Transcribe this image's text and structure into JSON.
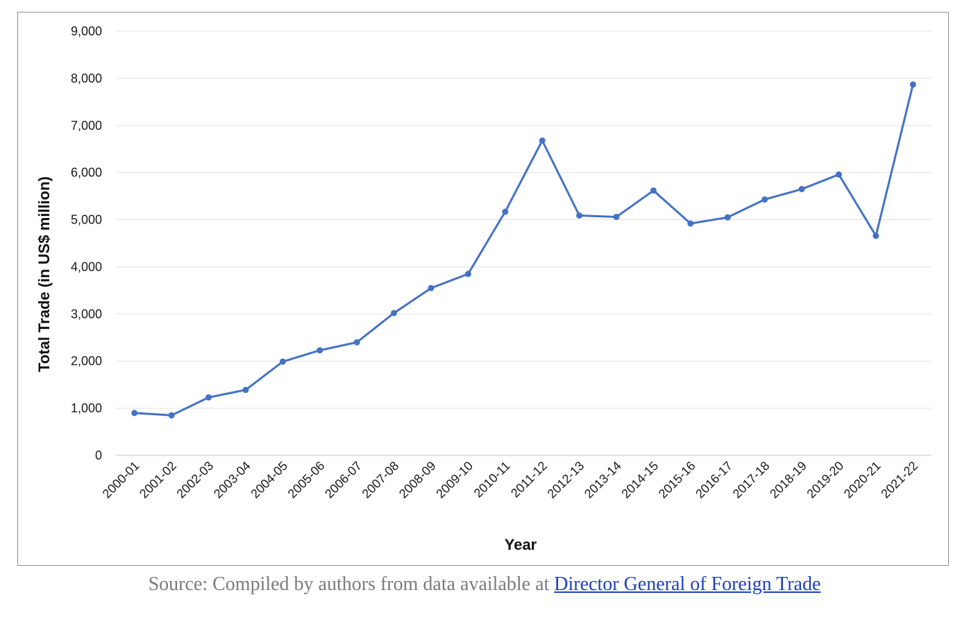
{
  "chart_data": {
    "type": "line",
    "xlabel": "Year",
    "ylabel": "Total Trade (in US$ million)",
    "categories": [
      "2000-01",
      "2001-02",
      "2002-03",
      "2003-04",
      "2004-05",
      "2005-06",
      "2006-07",
      "2007-08",
      "2008-09",
      "2009-10",
      "2010-11",
      "2011-12",
      "2012-13",
      "2013-14",
      "2014-15",
      "2015-16",
      "2016-17",
      "2017-18",
      "2018-19",
      "2019-20",
      "2020-21",
      "2021-22"
    ],
    "series": [
      {
        "values": [
          900,
          850,
          1230,
          1390,
          1990,
          2230,
          2400,
          3020,
          3550,
          3850,
          5170,
          6680,
          5090,
          5060,
          5620,
          4920,
          5050,
          5430,
          5650,
          5960,
          4660,
          7870
        ]
      }
    ],
    "ylim": [
      0,
      9000
    ],
    "yticks": [
      0,
      1000,
      2000,
      3000,
      4000,
      5000,
      6000,
      7000,
      8000,
      9000
    ],
    "ytick_labels": [
      "0",
      "1,000",
      "2,000",
      "3,000",
      "4,000",
      "5,000",
      "6,000",
      "7,000",
      "8,000",
      "9,000"
    ],
    "grid": true,
    "line_color": "#4472c4"
  },
  "caption": {
    "prefix": "Source: Compiled by authors from data available at ",
    "link_text": "Director General of Foreign Trade"
  }
}
